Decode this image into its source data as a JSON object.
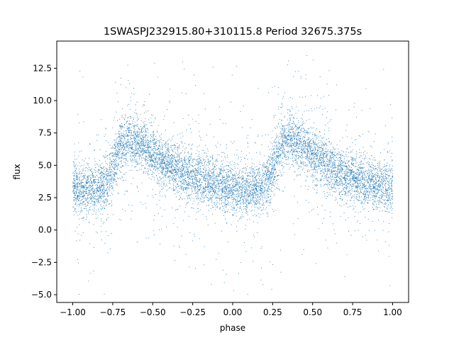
{
  "chart_data": {
    "type": "scatter",
    "title": "1SWASPJ232915.80+310115.8 Period 32675.375s",
    "xlabel": "phase",
    "ylabel": "flux",
    "xlim": [
      -1.1,
      1.1
    ],
    "ylim": [
      -5.6,
      14.6
    ],
    "xticks": [
      -1.0,
      -0.75,
      -0.5,
      -0.25,
      0.0,
      0.25,
      0.5,
      0.75,
      1.0
    ],
    "xtick_labels": [
      "−1.00",
      "−0.75",
      "−0.50",
      "−0.25",
      "0.00",
      "0.25",
      "0.50",
      "0.75",
      "1.00"
    ],
    "yticks": [
      -5.0,
      -2.5,
      0.0,
      2.5,
      5.0,
      7.5,
      10.0,
      12.5
    ],
    "ytick_labels": [
      "−5.0",
      "−2.5",
      "0.0",
      "2.5",
      "5.0",
      "7.5",
      "10.0",
      "12.5"
    ],
    "grid": false,
    "marker_color": "#1f77b4",
    "series": [
      {
        "phase_flux_profile": {
          "phase": [
            0.0,
            0.05,
            0.1,
            0.15,
            0.2,
            0.25,
            0.3,
            0.35,
            0.4,
            0.45,
            0.5,
            0.55,
            0.6,
            0.65,
            0.7,
            0.75,
            0.8,
            0.85,
            0.9,
            0.95,
            1.0
          ],
          "flux": [
            3.2,
            3.1,
            3.1,
            3.2,
            3.5,
            4.8,
            6.6,
            7.0,
            6.8,
            6.4,
            5.8,
            5.3,
            5.0,
            4.6,
            4.3,
            4.1,
            3.9,
            3.7,
            3.5,
            3.3,
            3.2
          ]
        },
        "phase_range": [
          -1.0,
          1.0
        ]
      }
    ]
  }
}
